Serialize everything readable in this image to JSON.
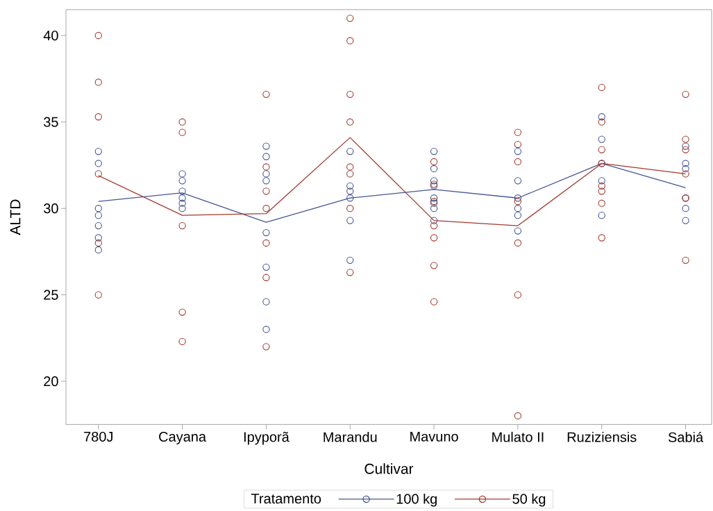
{
  "chart_data": {
    "type": "scatter",
    "xlabel": "Cultivar",
    "ylabel": "ALTD",
    "legend_title": "Tratamento",
    "legend": "bottom",
    "marker": "circle",
    "categories": [
      "780J",
      "Cayana",
      "Ipyporã",
      "Marandu",
      "Mavuno",
      "Mulato II",
      "Ruziziensis",
      "Sabiá"
    ],
    "ylim": [
      17.5,
      41.5
    ],
    "yticks": [
      20,
      25,
      30,
      35,
      40
    ],
    "series": [
      {
        "name": "100 kg",
        "color": "#445694",
        "x": [
          "780J",
          "780J",
          "780J",
          "780J",
          "780J",
          "780J",
          "780J",
          "Cayana",
          "Cayana",
          "Cayana",
          "Cayana",
          "Cayana",
          "Cayana",
          "Ipyporã",
          "Ipyporã",
          "Ipyporã",
          "Ipyporã",
          "Ipyporã",
          "Ipyporã",
          "Ipyporã",
          "Ipyporã",
          "Marandu",
          "Marandu",
          "Marandu",
          "Marandu",
          "Marandu",
          "Marandu",
          "Mavuno",
          "Mavuno",
          "Mavuno",
          "Mavuno",
          "Mavuno",
          "Mavuno",
          "Mavuno",
          "Mavuno",
          "Mulato II",
          "Mulato II",
          "Mulato II",
          "Mulato II",
          "Mulato II",
          "Mulato II",
          "Ruziziensis",
          "Ruziziensis",
          "Ruziziensis",
          "Ruziziensis",
          "Ruziziensis",
          "Sabiá",
          "Sabiá",
          "Sabiá",
          "Sabiá",
          "Sabiá",
          "Sabiá"
        ],
        "values": [
          33.3,
          32.6,
          30.0,
          29.6,
          29.0,
          28.3,
          27.6,
          32.0,
          31.6,
          31.0,
          30.6,
          30.3,
          30.0,
          33.6,
          33.0,
          32.0,
          31.6,
          28.6,
          26.6,
          24.6,
          23.0,
          33.3,
          31.3,
          31.0,
          30.6,
          29.3,
          27.0,
          33.3,
          32.3,
          31.6,
          31.3,
          30.6,
          30.3,
          30.0,
          29.3,
          33.3,
          31.6,
          30.6,
          30.0,
          29.6,
          28.7,
          35.3,
          34.0,
          32.6,
          31.6,
          29.6,
          33.6,
          32.6,
          32.3,
          30.6,
          30.0,
          29.3
        ]
      },
      {
        "name": "50 kg",
        "color": "#a23a2e",
        "x": [
          "780J",
          "780J",
          "780J",
          "780J",
          "780J",
          "780J",
          "Cayana",
          "Cayana",
          "Cayana",
          "Cayana",
          "Cayana",
          "Ipyporã",
          "Ipyporã",
          "Ipyporã",
          "Ipyporã",
          "Ipyporã",
          "Ipyporã",
          "Ipyporã",
          "Marandu",
          "Marandu",
          "Marandu",
          "Marandu",
          "Marandu",
          "Marandu",
          "Marandu",
          "Marandu",
          "Mavuno",
          "Mavuno",
          "Mavuno",
          "Mavuno",
          "Mavuno",
          "Mavuno",
          "Mavuno",
          "Mulato II",
          "Mulato II",
          "Mulato II",
          "Mulato II",
          "Mulato II",
          "Mulato II",
          "Mulato II",
          "Ruziziensis",
          "Ruziziensis",
          "Ruziziensis",
          "Ruziziensis",
          "Ruziziensis",
          "Ruziziensis",
          "Ruziziensis",
          "Ruziziensis",
          "Sabiá",
          "Sabiá",
          "Sabiá",
          "Sabiá",
          "Sabiá",
          "Sabiá"
        ],
        "values": [
          40.0,
          37.3,
          35.3,
          32.0,
          28.0,
          25.0,
          35.0,
          34.4,
          29.0,
          24.0,
          22.3,
          36.6,
          32.4,
          31.0,
          30.0,
          28.0,
          26.0,
          22.0,
          41.0,
          39.7,
          36.6,
          35.0,
          32.4,
          32.0,
          30.0,
          26.3,
          32.7,
          31.4,
          30.4,
          29.0,
          28.3,
          26.7,
          24.6,
          34.4,
          33.7,
          32.7,
          30.4,
          28.0,
          25.0,
          18.0,
          37.0,
          35.0,
          33.4,
          32.6,
          31.3,
          31.0,
          30.3,
          28.3,
          36.6,
          34.0,
          33.4,
          32.0,
          30.6,
          27.0
        ]
      },
      {
        "type": "line",
        "marker": "none",
        "color": "#445694",
        "values": [
          30.4,
          30.9,
          29.2,
          30.6,
          31.1,
          30.6,
          32.6,
          31.2
        ]
      },
      {
        "type": "line",
        "marker": "none",
        "color": "#a23a2e",
        "values": [
          31.9,
          29.6,
          29.7,
          34.1,
          29.3,
          29.0,
          32.6,
          32.0
        ]
      }
    ]
  }
}
